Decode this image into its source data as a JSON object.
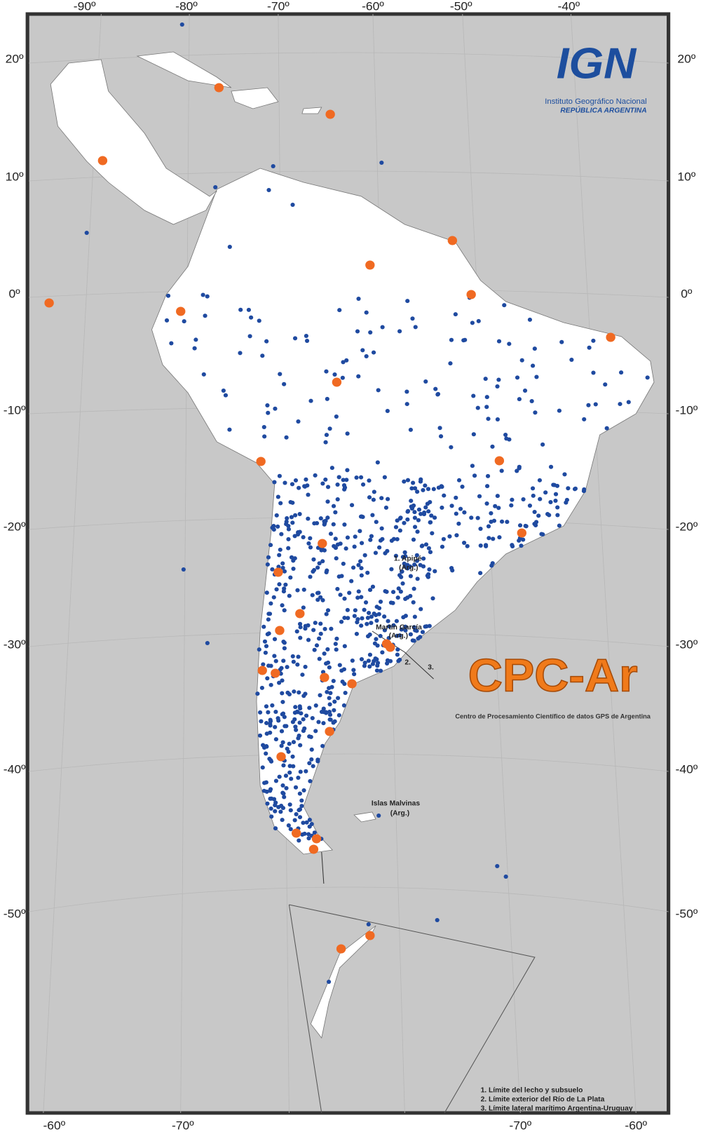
{
  "map": {
    "top_labels": [
      "-90º",
      "-80º",
      "-70º",
      "-60º",
      "-50º",
      "-40º"
    ],
    "left_labels": [
      "20º",
      "10º",
      "0º",
      "-10º",
      "-20º",
      "-30º",
      "-40º",
      "-50º"
    ],
    "right_labels": [
      "20º",
      "10º",
      "0º",
      "-10º",
      "-20º",
      "-30º",
      "-40º",
      "-50º"
    ],
    "bottom_labels": [
      "-60º",
      "-70º",
      "-70º",
      "-60º"
    ],
    "ign_logo": {
      "mark": "IGN",
      "line1": "Instituto Geográfico Nacional",
      "line2": "REPÚBLICA ARGENTINA"
    },
    "cpc_logo": {
      "mark": "CPC-Ar",
      "subtitle": "Centro de Procesamiento Científico de datos GPS de Argentina"
    },
    "annotations": {
      "apipe": [
        "1. Apipé",
        "(Arg.)"
      ],
      "martin_garcia": [
        "Martín García",
        "(Arg.)"
      ],
      "marker_2": "2.",
      "marker_3": "3.",
      "malvinas": [
        "Islas Malvinas",
        "(Arg.)"
      ]
    },
    "legend": [
      "1. Límite del lecho y subsuelo",
      "2. Límite exterior del Río de La Plata",
      "3. Límite lateral marítimo Argentina-Uruguay"
    ]
  }
}
